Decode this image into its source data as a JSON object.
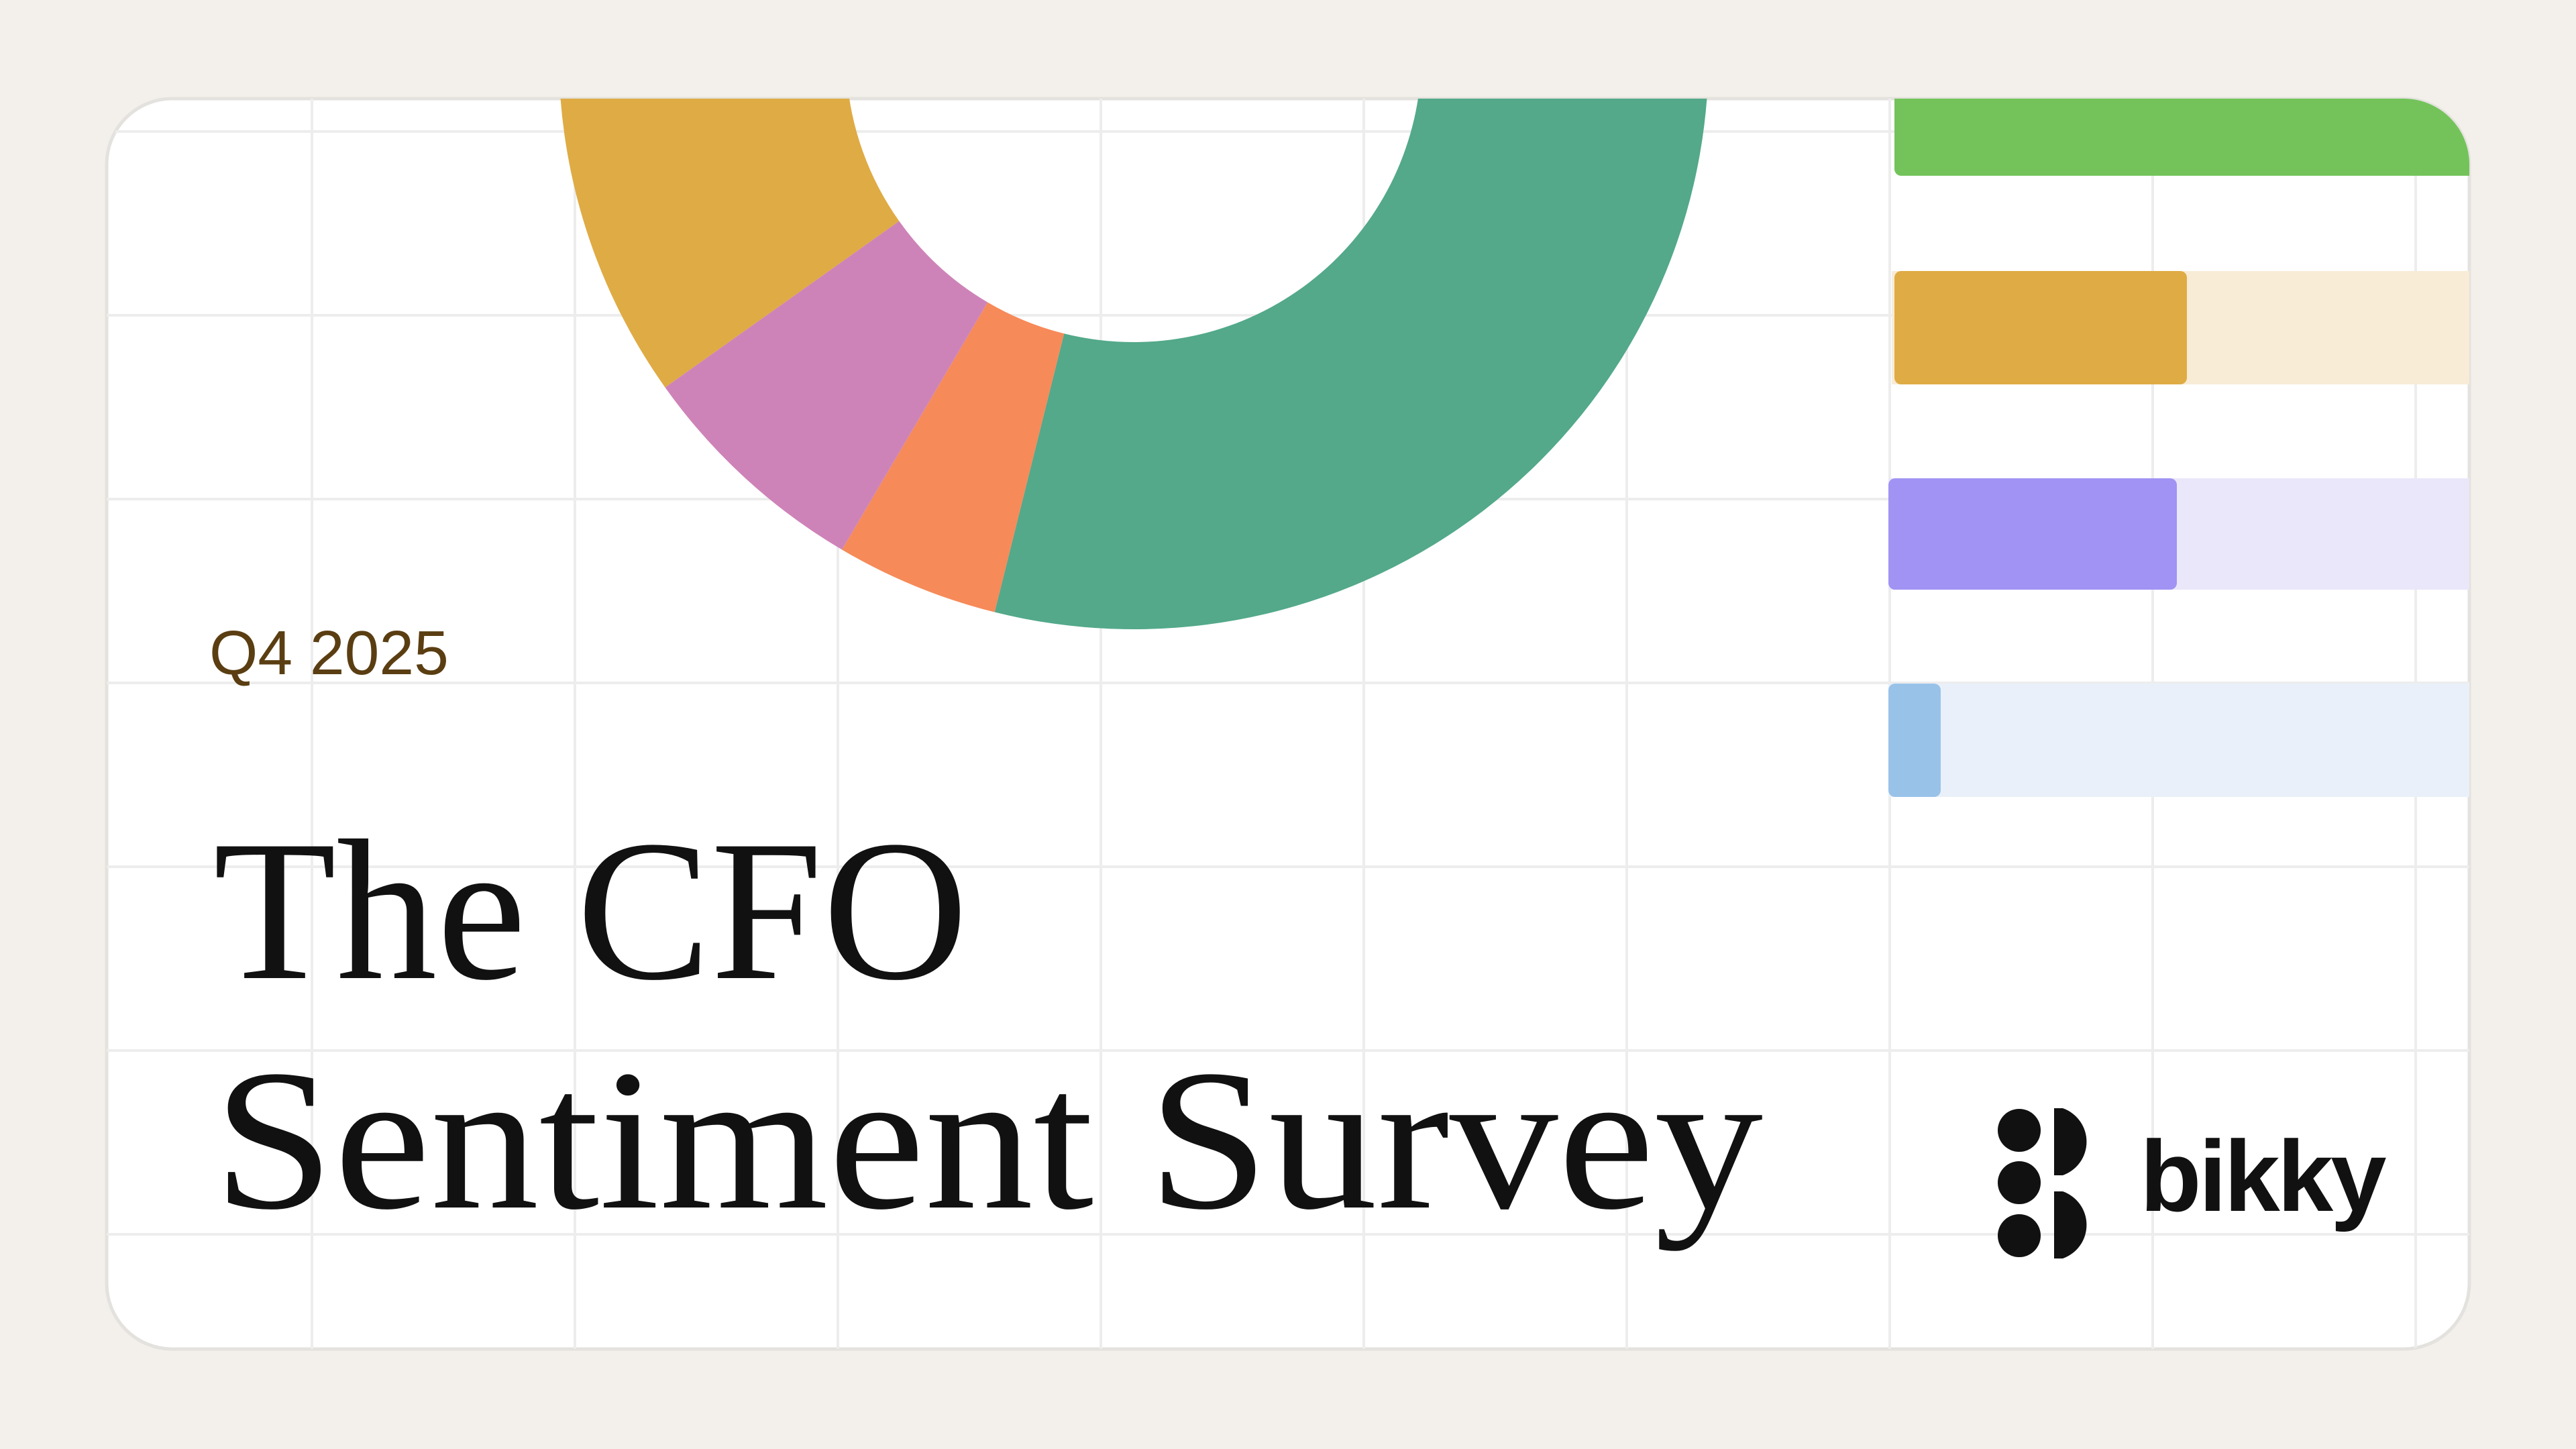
{
  "header": {
    "period": "Q4 2025",
    "title_line_1": "The CFO",
    "title_line_2": "Sentiment Survey"
  },
  "brand": {
    "name": "bikky"
  }
}
